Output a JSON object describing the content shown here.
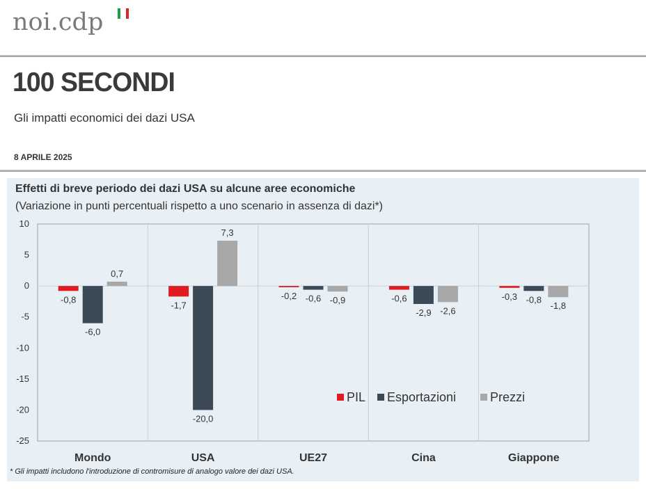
{
  "header": {
    "logo_text": "noi.cdp",
    "logo_colors": [
      "#1f9d4a",
      "#ffffff",
      "#d7262e"
    ],
    "title": "100 SECONDI",
    "subtitle": "Gli impatti economici dei dazi USA",
    "date": "8 APRILE 2025"
  },
  "chart_data": {
    "type": "bar",
    "title": "Effetti di breve periodo dei dazi USA su alcune aree economiche",
    "subtitle": "(Variazione in punti percentuali rispetto a uno scenario in assenza di dazi*)",
    "categories": [
      "Mondo",
      "USA",
      "UE27",
      "Cina",
      "Giappone"
    ],
    "series": [
      {
        "name": "PIL",
        "color": "#e11b22",
        "values": [
          -0.8,
          -1.7,
          -0.2,
          -0.6,
          -0.3
        ],
        "labels": [
          "-0,8",
          "-1,7",
          "-0,2",
          "-0,6",
          "-0,3"
        ]
      },
      {
        "name": "Esportazioni",
        "color": "#3c4a58",
        "values": [
          -6.0,
          -20.0,
          -0.6,
          -2.9,
          -0.8
        ],
        "labels": [
          "-6,0",
          "-20,0",
          "-0,6",
          "-2,9",
          "-0,8"
        ]
      },
      {
        "name": "Prezzi",
        "color": "#a8a8a8",
        "values": [
          0.7,
          7.3,
          -0.9,
          -2.6,
          -1.8
        ],
        "labels": [
          "0,7",
          "7,3",
          "-0,9",
          "-2,6",
          "-1,8"
        ]
      }
    ],
    "ylim": [
      -25,
      10
    ],
    "yticks": [
      10,
      5,
      0,
      -5,
      -10,
      -15,
      -20,
      -25
    ],
    "legend_position": "lower-right",
    "footnote": "* Gli impatti includono l'introduzione di contromisure di analogo valore dei dazi USA."
  }
}
